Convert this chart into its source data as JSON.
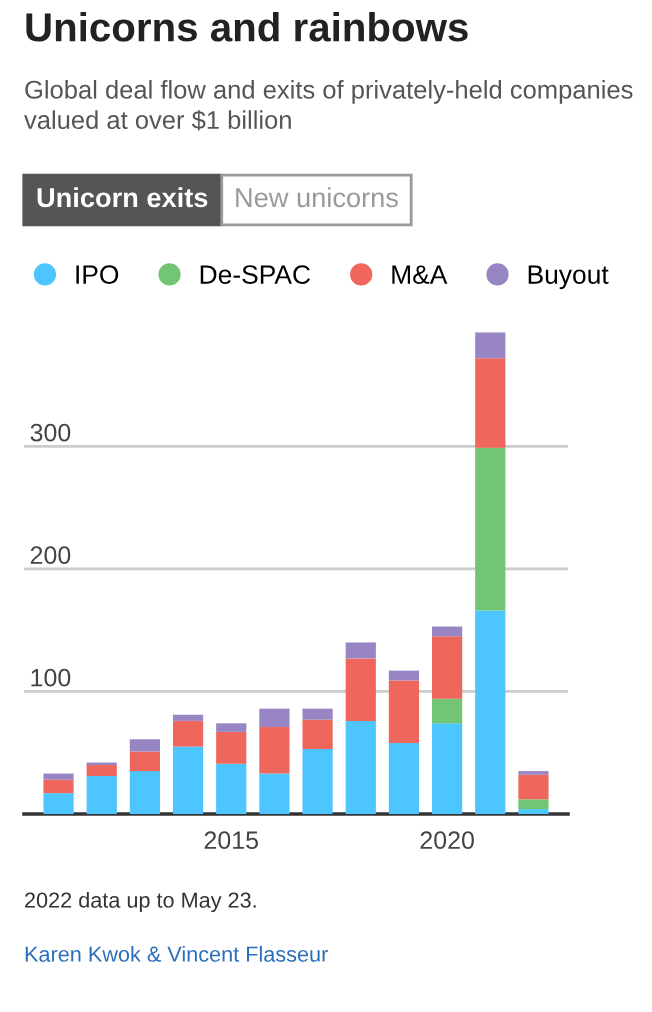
{
  "chart_data": {
    "type": "bar",
    "title": "Unicorns and rainbows",
    "subtitle": "Global deal flow and exits of privately-held companies valued at over $1 billion",
    "x": [
      2011,
      2012,
      2013,
      2014,
      2015,
      2016,
      2017,
      2018,
      2019,
      2020,
      2021,
      2022
    ],
    "stacked": true,
    "series": [
      {
        "name": "IPO",
        "color": "#4dc6ff",
        "values": [
          17,
          31,
          35,
          55,
          41,
          33,
          53,
          76,
          58,
          74,
          166,
          4
        ]
      },
      {
        "name": "De-SPAC",
        "color": "#72c574",
        "values": [
          0,
          0,
          0,
          0,
          0,
          0,
          0,
          0,
          0,
          20,
          133,
          8
        ]
      },
      {
        "name": "M&A",
        "color": "#ef665c",
        "values": [
          11,
          9,
          16,
          21,
          26,
          38,
          24,
          51,
          51,
          51,
          73,
          20
        ]
      },
      {
        "name": "Buyout",
        "color": "#9885c3",
        "values": [
          5,
          2,
          10,
          5,
          7,
          15,
          9,
          13,
          8,
          8,
          21,
          3
        ]
      }
    ],
    "xlim": [
      2010.2,
      2022.8
    ],
    "xticks": [
      2015,
      2020
    ],
    "ylim": [
      0,
      395
    ],
    "yticks": [
      100,
      200,
      300
    ],
    "grid": "y",
    "legend": "top left",
    "annotations": [
      "Unicorn exits",
      "New unicorns",
      "2022 data up to May 23.",
      "Karen Kwok & Vincent Flasseur"
    ]
  }
}
